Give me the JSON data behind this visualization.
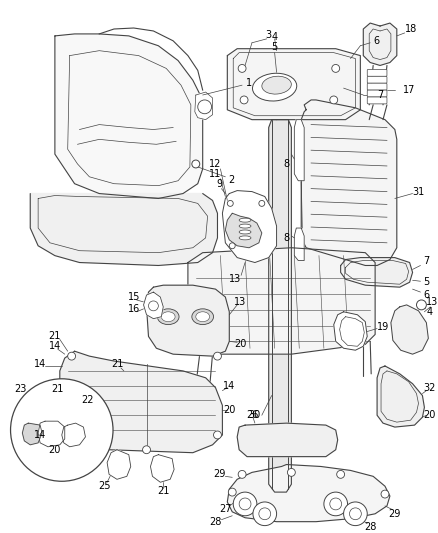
{
  "bg_color": "#ffffff",
  "line_color": "#444444",
  "text_color": "#000000",
  "fig_width": 4.38,
  "fig_height": 5.33,
  "dpi": 100
}
